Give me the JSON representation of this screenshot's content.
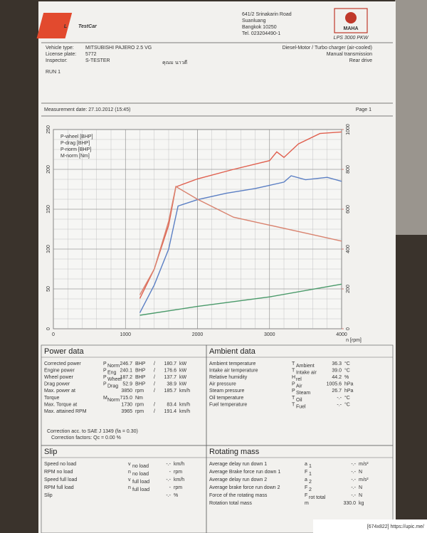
{
  "header": {
    "logo_mark": "L",
    "logo_text": "TestCar",
    "address": [
      "641/2 Srinakarin Road",
      "Suanluang",
      "Bangkok 10250",
      "Tel. 023204490-1"
    ],
    "brand": "MAHA",
    "brand_model": "LPS 3000 PKW"
  },
  "vehicle": {
    "left": [
      [
        "Vehicle type:",
        "MITSUBISHI PAJERO 2.5 VG"
      ],
      [
        "License plate:",
        "5772"
      ],
      [
        "Inspector:",
        "S-TESTER"
      ]
    ],
    "handwriting": "คุณม นาวดี",
    "right": [
      "Diesel-Motor / Turbo charger (air-cooled)",
      "Manual transmission",
      "Rear drive"
    ],
    "run": "RUN 1"
  },
  "measurement": {
    "date": "Measurement date: 27.10.2012 (15:45)",
    "page": "Page 1"
  },
  "chart": {
    "xlim": [
      0,
      4000
    ],
    "xticks": [
      0,
      1000,
      2000,
      3000,
      4000
    ],
    "x_label": "n [rpm]",
    "ylim": [
      0,
      250
    ],
    "yticks": [
      0,
      50,
      100,
      150,
      200,
      250
    ],
    "y2lim": [
      0,
      1000
    ],
    "y2ticks": [
      0,
      200,
      400,
      600,
      800,
      1000
    ],
    "grid": true,
    "series": [
      {
        "name": "P-wheel [BHP]",
        "color": "#5b7fc4",
        "x": [
          1200,
          1400,
          1600,
          1730,
          2000,
          2400,
          2800,
          3000,
          3200,
          3300,
          3500,
          3800,
          4000
        ],
        "values": [
          20,
          55,
          100,
          154,
          162,
          170,
          176,
          180,
          184,
          192,
          187,
          190,
          185
        ]
      },
      {
        "name": "P-drag [BHP]",
        "color": "#4a9a6a",
        "x": [
          1200,
          2000,
          3000,
          4000
        ],
        "values": [
          17,
          28,
          40,
          56
        ]
      },
      {
        "name": "P-norm [BHP]",
        "color": "#e0604f",
        "x": [
          1200,
          1400,
          1600,
          1700,
          2000,
          2500,
          3000,
          3100,
          3200,
          3400,
          3700,
          4000
        ],
        "values": [
          38,
          75,
          130,
          178,
          188,
          200,
          211,
          222,
          215,
          232,
          245,
          247
        ]
      },
      {
        "name": "M-norm [Nm]",
        "color": "#d9836f",
        "axis": "y2",
        "x": [
          1200,
          1400,
          1600,
          1700,
          2000,
          2500,
          3000,
          3500,
          4000
        ],
        "values": [
          170,
          300,
          540,
          714,
          650,
          560,
          520,
          480,
          440
        ]
      }
    ]
  },
  "power": {
    "title": "Power data",
    "rows": [
      {
        "label": "Corrected power",
        "symbol": "P",
        "sub": "Norm",
        "value": "246.7",
        "unit": "BHP",
        "sep": "/",
        "value2": "180.7",
        "unit2": "kW",
        "color": "#c0392b"
      },
      {
        "label": "Engine power",
        "symbol": "P",
        "sub": "Eng",
        "value": "240.1",
        "unit": "BHP",
        "sep": "/",
        "value2": "176.6",
        "unit2": "kW"
      },
      {
        "label": "Wheel power",
        "symbol": "P",
        "sub": "Wheel",
        "value": "187.2",
        "unit": "BHP",
        "sep": "/",
        "value2": "137.7",
        "unit2": "kW"
      },
      {
        "label": "Drag power",
        "symbol": "P",
        "sub": "Drag",
        "value": "52.9",
        "unit": "BHP",
        "sep": "/",
        "value2": "38.9",
        "unit2": "kW"
      },
      {
        "label": "Max. power at",
        "value": "3850",
        "unit": "rpm",
        "sep": "/",
        "value2": "185.7",
        "unit2": "km/h"
      },
      {
        "label": "Torque",
        "symbol": "M",
        "sub": "Norm",
        "value": "715.0",
        "unit": "Nm",
        "color": "#c0392b"
      },
      {
        "label": "Max. Torque at",
        "value": "1730",
        "unit": "rpm",
        "sep": "/",
        "value2": "83.4",
        "unit2": "km/h"
      },
      {
        "label": "Max. attained RPM",
        "value": "3965",
        "unit": "rpm",
        "sep": "/",
        "value2": "191.4",
        "unit2": "km/h"
      }
    ],
    "notes": [
      "Correction acc. to SAE J 1349 (fa = 0.30)",
      "Correction factors: Qc = 0.00 %"
    ]
  },
  "ambient": {
    "title": "Ambient data",
    "rows": [
      {
        "label": "Ambient temperature",
        "symbol": "T",
        "sub": "Ambient",
        "value": "36.3",
        "unit": "°C"
      },
      {
        "label": "Intake air temperature",
        "symbol": "T",
        "sub": "Intake air",
        "value": "39.0",
        "unit": "°C"
      },
      {
        "label": "Relative humidity",
        "symbol": "H",
        "sub": "rel",
        "value": "44.2",
        "unit": "%"
      },
      {
        "label": "Air pressure",
        "symbol": "P",
        "sub": "Air",
        "value": "1005.6",
        "unit": "hPa"
      },
      {
        "label": "Steam pressure",
        "symbol": "P",
        "sub": "Steam",
        "value": "26.7",
        "unit": "hPa"
      },
      {
        "label": "Oil temperature",
        "symbol": "T",
        "sub": "Oil",
        "value": "-.-",
        "unit": "°C"
      },
      {
        "label": "Fuel temperature",
        "symbol": "T",
        "sub": "Fuel",
        "value": "-.-",
        "unit": "°C"
      }
    ]
  },
  "slip": {
    "title": "Slip",
    "rows": [
      {
        "label": "Speed no load",
        "symbol": "v",
        "sub": "no load",
        "value": "-.-",
        "unit": "km/h"
      },
      {
        "label": "RPM no load",
        "symbol": "n",
        "sub": "no load",
        "value": "-",
        "unit": "rpm"
      },
      {
        "label": "Speed full load",
        "symbol": "v",
        "sub": "full load",
        "value": "-.-",
        "unit": "km/h"
      },
      {
        "label": "RPM full load",
        "symbol": "n",
        "sub": "full load",
        "value": "-",
        "unit": "rpm"
      },
      {
        "label": "Slip",
        "value": "-.-",
        "unit": "%"
      }
    ]
  },
  "rotating": {
    "title": "Rotating mass",
    "rows": [
      {
        "label": "Average delay run down 1",
        "symbol": "a",
        "sub": "1",
        "value": "-.-",
        "unit": "m/s²"
      },
      {
        "label": "Average Brake force run down 1",
        "symbol": "F",
        "sub": "1",
        "value": "-.-",
        "unit": "N"
      },
      {
        "label": "Average delay run down 2",
        "symbol": "a",
        "sub": "2",
        "value": "-.-",
        "unit": "m/s²"
      },
      {
        "label": "Average brake force run down 2",
        "symbol": "F",
        "sub": "2",
        "value": "-.-",
        "unit": "N"
      },
      {
        "label": "Force of the rotating mass",
        "symbol": "F",
        "sub": "rot total",
        "value": "-.-",
        "unit": "N"
      },
      {
        "label": "Rotation total mass",
        "symbol": "m",
        "value": "330.0",
        "unit": "kg"
      }
    ]
  },
  "footer": "[674x822] https://upic.me/"
}
